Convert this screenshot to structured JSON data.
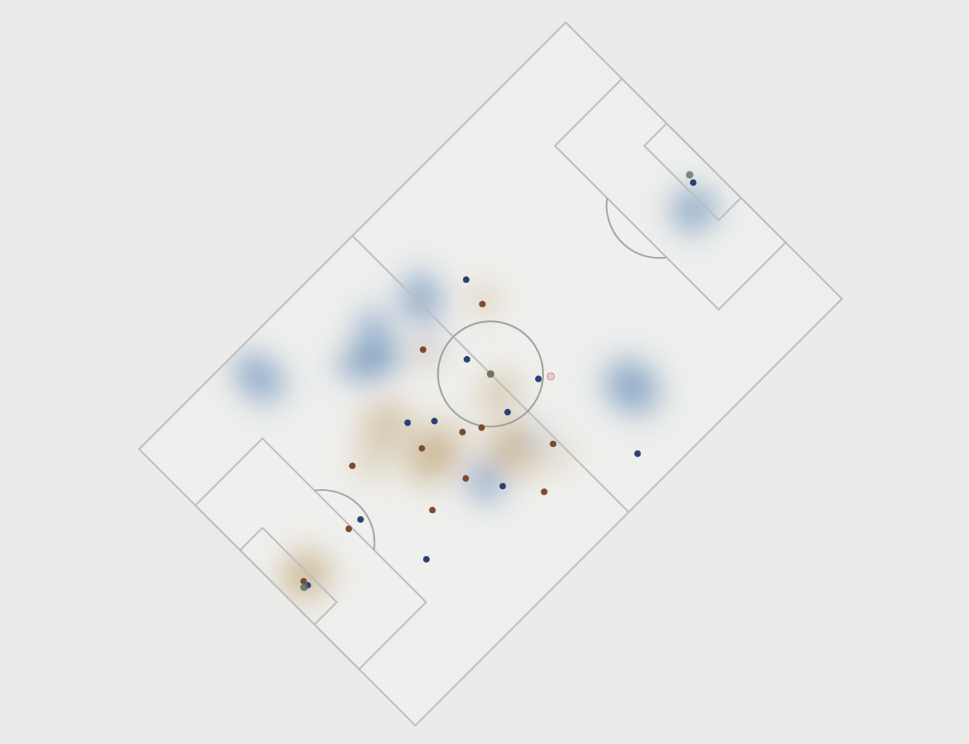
{
  "pitch": {
    "length": 105,
    "width": 68,
    "rotation_deg": -45,
    "background_color": "#ebebe9",
    "surface_color": "#efefed",
    "line_color": "#bdbdbd",
    "surface_opacity": 0.95
  },
  "teams": {
    "blue": {
      "dot_color": "#2b3f73",
      "heat_color": "#3a6ea5"
    },
    "brown": {
      "dot_color": "#7a4a30",
      "heat_color": "#a9823f"
    }
  },
  "players": [
    {
      "team": "blue",
      "x": 4.0,
      "y": 30.5
    },
    {
      "team": "blue",
      "x": 18.6,
      "y": 32.1
    },
    {
      "team": "blue",
      "x": 21.8,
      "y": 19.1
    },
    {
      "team": "blue",
      "x": 36.3,
      "y": 38.2
    },
    {
      "team": "blue",
      "x": 39.8,
      "y": 35.1
    },
    {
      "team": "blue",
      "x": 40.2,
      "y": 18.7
    },
    {
      "team": "blue",
      "x": 49.9,
      "y": 27.2
    },
    {
      "team": "blue",
      "x": 51.4,
      "y": 38.7
    },
    {
      "team": "blue",
      "x": 57.8,
      "y": 27.5
    },
    {
      "team": "blue",
      "x": 60.8,
      "y": 6.1
    },
    {
      "team": "blue",
      "x": 61.1,
      "y": 48.6
    },
    {
      "team": "blue",
      "x": 101.0,
      "y": 32.6
    },
    {
      "team": "brown",
      "x": 16.0,
      "y": 32.4
    },
    {
      "team": "brown",
      "x": 24.2,
      "y": 39.7
    },
    {
      "team": "brown",
      "x": 28.6,
      "y": 24.4
    },
    {
      "team": "brown",
      "x": 34.9,
      "y": 33.3
    },
    {
      "team": "brown",
      "x": 36.6,
      "y": 24.2
    },
    {
      "team": "brown",
      "x": 41.9,
      "y": 30.3
    },
    {
      "team": "brown",
      "x": 44.6,
      "y": 12.9
    },
    {
      "team": "brown",
      "x": 44.8,
      "y": 28.5
    },
    {
      "team": "brown",
      "x": 47.2,
      "y": 45.3
    },
    {
      "team": "brown",
      "x": 51.6,
      "y": 17.7
    },
    {
      "team": "brown",
      "x": 60.1,
      "y": 43.6
    },
    {
      "team": "brown",
      "x": 4.0,
      "y": 31.5
    }
  ],
  "ball": {
    "x": 52.5,
    "y": 34.0,
    "color": "#77705f"
  },
  "ball_markers": [
    {
      "x": 3.3,
      "y": 30.7,
      "color": "#66735f"
    },
    {
      "x": 101.5,
      "y": 34.0,
      "color": "#6f7a7f"
    }
  ],
  "highlight": {
    "x": 59.6,
    "y": 26.3,
    "color": "#f4c6d2"
  },
  "heat_blobs": [
    {
      "team": "blue",
      "x": 53.3,
      "y": 51.9,
      "rx": 4.7,
      "ry": 6.1,
      "rot": 35,
      "strength": 1.0
    },
    {
      "team": "blue",
      "x": 40.8,
      "y": 50.0,
      "rx": 6.0,
      "ry": 4.6,
      "rot": 30,
      "strength": 0.95
    },
    {
      "team": "blue",
      "x": 43.9,
      "y": 54.4,
      "rx": 4.3,
      "ry": 3.8,
      "rot": 0,
      "strength": 0.85
    },
    {
      "team": "blue",
      "x": 37.2,
      "y": 51.5,
      "rx": 5.4,
      "ry": 3.8,
      "rot": 45,
      "strength": 0.8
    },
    {
      "team": "blue",
      "x": 23.6,
      "y": 61.3,
      "rx": 5.0,
      "ry": 6.1,
      "rot": 0,
      "strength": 0.9
    },
    {
      "team": "blue",
      "x": 23.4,
      "y": 65.0,
      "rx": 4.0,
      "ry": 3.0,
      "rot": 0,
      "strength": 0.6
    },
    {
      "team": "blue",
      "x": 38.5,
      "y": 21.3,
      "rx": 4.3,
      "ry": 4.9,
      "rot": 0,
      "strength": 0.95
    },
    {
      "team": "blue",
      "x": 68.3,
      "y": 15.0,
      "rx": 6.0,
      "ry": 7.5,
      "rot": 0,
      "strength": 0.95
    },
    {
      "team": "blue",
      "x": 97.7,
      "y": 29.2,
      "rx": 5.6,
      "ry": 5.3,
      "rot": 0,
      "strength": 0.95
    },
    {
      "team": "blue",
      "x": 50.4,
      "y": 21.0,
      "rx": 2.8,
      "ry": 3.1,
      "rot": 0,
      "strength": 0.55
    },
    {
      "team": "blue",
      "x": 50.0,
      "y": 45.0,
      "rx": 3.0,
      "ry": 3.0,
      "rot": 0,
      "strength": 0.3
    },
    {
      "team": "brown",
      "x": 35.7,
      "y": 31.2,
      "rx": 8.0,
      "ry": 6.2,
      "rot": 0,
      "strength": 0.85
    },
    {
      "team": "brown",
      "x": 33.4,
      "y": 40.6,
      "rx": 6.2,
      "ry": 5.6,
      "rot": 0,
      "strength": 0.7
    },
    {
      "team": "brown",
      "x": 45.9,
      "y": 22.9,
      "rx": 6.0,
      "ry": 5.0,
      "rot": 0,
      "strength": 0.85
    },
    {
      "team": "brown",
      "x": 51.2,
      "y": 30.5,
      "rx": 5.3,
      "ry": 4.4,
      "rot": 0,
      "strength": 0.65
    },
    {
      "team": "brown",
      "x": 45.9,
      "y": 18.2,
      "rx": 3.0,
      "ry": 3.1,
      "rot": 0,
      "strength": 0.65
    },
    {
      "team": "brown",
      "x": 51.0,
      "y": 15.6,
      "rx": 3.0,
      "ry": 3.1,
      "rot": 0,
      "strength": 0.55
    },
    {
      "team": "brown",
      "x": 60.8,
      "y": 43.8,
      "rx": 3.0,
      "ry": 3.3,
      "rot": 0,
      "strength": 0.7
    },
    {
      "team": "brown",
      "x": 47.0,
      "y": 44.3,
      "rx": 3.2,
      "ry": 3.0,
      "rot": 0,
      "strength": 0.6
    },
    {
      "team": "brown",
      "x": 5.0,
      "y": 32.0,
      "rx": 6.1,
      "ry": 5.5,
      "rot": 0,
      "strength": 0.9
    },
    {
      "team": "brown",
      "x": 27.0,
      "y": 38.0,
      "rx": 3.8,
      "ry": 3.8,
      "rot": 0,
      "strength": 0.55
    }
  ]
}
